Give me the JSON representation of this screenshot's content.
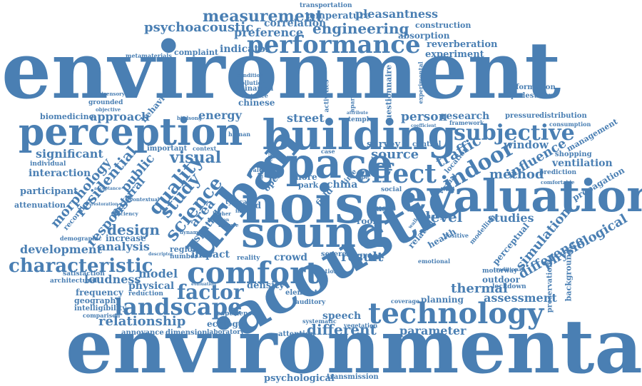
{
  "colors": {
    "word": "#4a7fb3",
    "background": "#ffffff"
  },
  "words": {
    "environment": "environment",
    "environmental": "environmental",
    "acoustic": "acoustic",
    "noise": "noise",
    "sound": "sound",
    "evaluation": "evaluation",
    "building": "building",
    "space": "space",
    "perception": "perception",
    "urban": "urban",
    "comfort": "comfort",
    "technology": "technology",
    "performance": "performance",
    "effect": "effect",
    "subjective": "subjective",
    "indoor": "indoor",
    "landscape": "landscape",
    "factor": "factor",
    "characteristic": "characteristic",
    "measurement": "measurement",
    "engineering": "engineering",
    "psychoacoustic": "psychoacoustic",
    "preference": "preference",
    "indicator": "indicator",
    "reverberation": "reverberation",
    "experiment": "experiment",
    "absorption": "absorption",
    "correlation": "correlation",
    "temperature": "temperature",
    "pleasantness": "pleasantness",
    "transportation": "transportation",
    "construction": "construction",
    "complaint": "complaint",
    "metamaterials": "metamaterials",
    "information": "information",
    "pedestrian": "pedestrian",
    "pressure": "pressure",
    "distribution": "distribution",
    "consumption": "consumption",
    "management": "management",
    "window": "window",
    "influence": "influence",
    "shopping": "shopping",
    "ventilation": "ventilation",
    "prediction": "prediction",
    "propagation": "propagation",
    "comfortable": "comfortable",
    "physiological": "physiological",
    "background": "background",
    "preservation": "preservation",
    "difference": "difference",
    "simulation": "simulation",
    "perceptual": "perceptual",
    "traffic": "traffic",
    "person": "person",
    "research": "research",
    "source": "source",
    "method": "method",
    "level": "level",
    "studies": "studies",
    "assessment": "assessment",
    "thermal": "thermal",
    "parameter": "parameter",
    "outdoor": "outdoor",
    "motorway": "motorway",
    "lockdown": "lockdown",
    "planning": "planning",
    "different": "different",
    "speech": "speech",
    "attention": "attention",
    "vegetation": "vegetation",
    "transmission": "transmission",
    "psychological": "psychological",
    "result": "result",
    "green": "green",
    "severe": "severe",
    "crowd": "crowd",
    "density": "density",
    "element": "element",
    "auditory": "auditory",
    "model": "model",
    "physical": "physical",
    "relationship": "relationship",
    "ecology": "ecology",
    "laboratory": "laboratory",
    "dimension": "dimension",
    "annoyance": "annoyance",
    "experience": "experience",
    "reduction": "reduction",
    "frequency": "frequency",
    "geography": "geography",
    "intelligibility": "intelligibility",
    "comparison": "comparison",
    "loudness": "loudness",
    "satisfaction": "satisfaction",
    "architectural": "architectural",
    "development": "development",
    "analysis": "analysis",
    "design": "design",
    "increase": "increase",
    "response": "response",
    "impact": "impact",
    "region": "region",
    "number": "number",
    "reality": "reality",
    "demographic": "demographic",
    "quality": "quality",
    "science": "science",
    "study": "study",
    "area": "area",
    "spatial": "spatial",
    "public": "public",
    "residential": "residential",
    "morphology": "morphology",
    "natural": "natural",
    "recording": "recording",
    "significant": "significant",
    "interaction": "interaction",
    "individual": "individual",
    "participant": "participant",
    "attenuation": "attenuation",
    "visual": "visual",
    "energy": "energy",
    "approach": "approach",
    "biomedicine": "biomedicine",
    "grounded": "grounded",
    "multisensory": "multisensory",
    "behaviour": "behaviour",
    "objective": "objective",
    "street": "street",
    "chinese": "chinese",
    "binaural": "binaural",
    "distance": "distance",
    "pollution": "pollution",
    "condition": "condition",
    "questionnaire": "questionnaire",
    "activities": "activities",
    "apartment": "apartment",
    "temple": "temple",
    "survey": "survey",
    "control": "control",
    "location": "location",
    "framework": "framework",
    "virtual": "virtual",
    "related": "related",
    "health": "health",
    "room": "room",
    "music": "music",
    "park": "park",
    "china": "china",
    "more": "more",
    "open": "open",
    "wind": "wind",
    "field": "field",
    "time": "time",
    "change": "change",
    "positive": "positive",
    "modelling": "modelling",
    "important": "important",
    "context": "context",
    "human": "human",
    "scale": "scale",
    "value": "value",
    "system": "system",
    "type": "type",
    "walking": "walking",
    "social": "social",
    "case": "case",
    "birdsong": "birdsong",
    "typical": "typical",
    "index": "index",
    "higher": "higher",
    "dynamic": "dynamic",
    "feature": "feature",
    "london": "london",
    "evaluation_small": "evaluation",
    "equation": "equation",
    "emotional": "emotional",
    "coverage": "coverage",
    "systematic": "systematic",
    "acceptance": "acceptance",
    "restoration": "restoration",
    "efficiency": "efficiency",
    "contextual": "contextual",
    "experimental": "experimental",
    "descriptor": "descriptor",
    "traditional": "traditional",
    "coefficient": "coefficient",
    "attribute": "attribute"
  }
}
